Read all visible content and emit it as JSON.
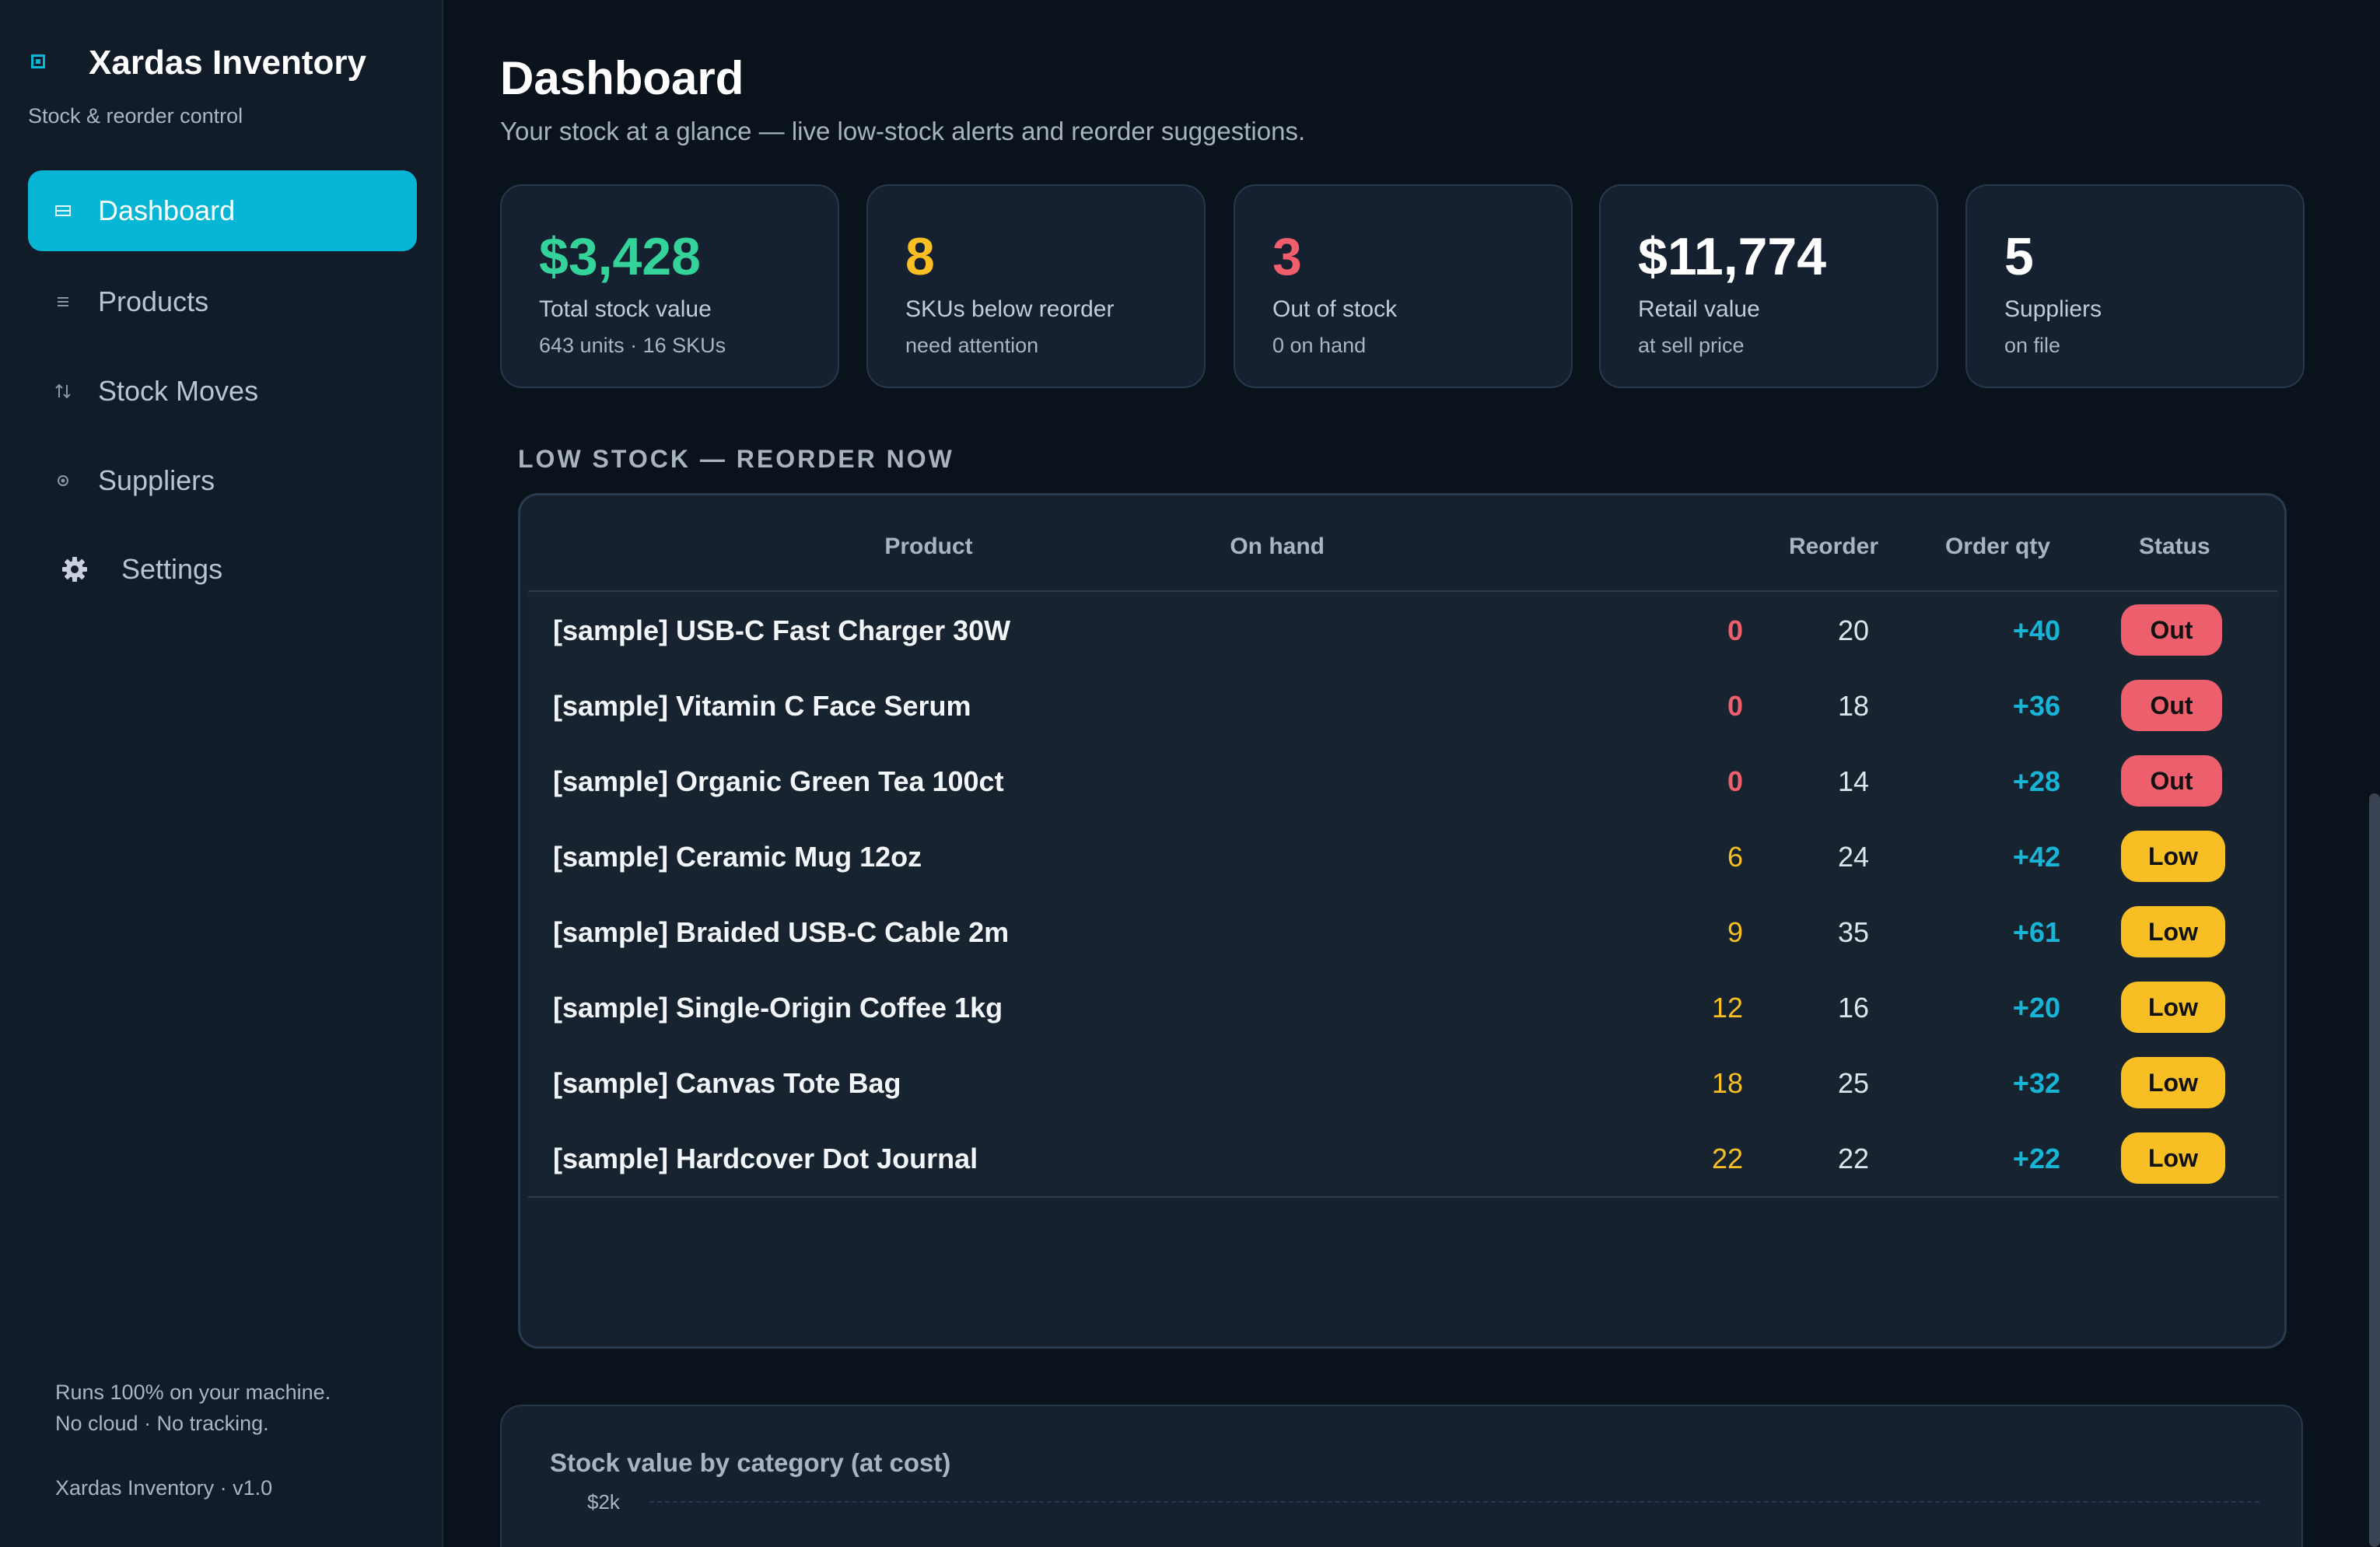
{
  "app": {
    "name": "Xardas Inventory",
    "tagline": "Stock & reorder control"
  },
  "sidebar": {
    "items": [
      {
        "label": "Dashboard",
        "icon": "dashboard-icon"
      },
      {
        "label": "Products",
        "icon": "list-icon"
      },
      {
        "label": "Stock Moves",
        "icon": "arrows-up-down-icon"
      },
      {
        "label": "Suppliers",
        "icon": "circle-icon"
      },
      {
        "label": "Settings",
        "icon": "gear-icon"
      }
    ],
    "footer_line1": "Runs 100% on your machine.",
    "footer_line2": "No cloud · No tracking.",
    "version": "Xardas Inventory · v1.0"
  },
  "header": {
    "title": "Dashboard",
    "subtitle": "Your stock at a glance — live low-stock alerts and reorder suggestions."
  },
  "kpis": [
    {
      "value": "$3,428",
      "label": "Total stock value",
      "sub": "643 units · 16 SKUs",
      "color": "#34d399"
    },
    {
      "value": "8",
      "label": "SKUs below reorder",
      "sub": "need attention",
      "color": "#fbbf24"
    },
    {
      "value": "3",
      "label": "Out of stock",
      "sub": "0 on hand",
      "color": "#f05d6c"
    },
    {
      "value": "$11,774",
      "label": "Retail value",
      "sub": "at sell price",
      "color": "#ffffff"
    },
    {
      "value": "5",
      "label": "Suppliers",
      "sub": "on file",
      "color": "#ffffff"
    }
  ],
  "low_stock": {
    "title": "LOW STOCK — REORDER NOW",
    "columns": [
      "Product",
      "On hand",
      "Reorder",
      "Order qty",
      "Status"
    ],
    "rows": [
      {
        "product": "[sample] USB-C Fast Charger 30W",
        "on_hand": "0",
        "reorder": "20",
        "order_qty": "+40",
        "status": "Out"
      },
      {
        "product": "[sample] Vitamin C Face Serum",
        "on_hand": "0",
        "reorder": "18",
        "order_qty": "+36",
        "status": "Out"
      },
      {
        "product": "[sample] Organic Green Tea 100ct",
        "on_hand": "0",
        "reorder": "14",
        "order_qty": "+28",
        "status": "Out"
      },
      {
        "product": "[sample] Ceramic Mug 12oz",
        "on_hand": "6",
        "reorder": "24",
        "order_qty": "+42",
        "status": "Low"
      },
      {
        "product": "[sample] Braided USB-C Cable 2m",
        "on_hand": "9",
        "reorder": "35",
        "order_qty": "+61",
        "status": "Low"
      },
      {
        "product": "[sample] Single-Origin Coffee 1kg",
        "on_hand": "12",
        "reorder": "16",
        "order_qty": "+20",
        "status": "Low"
      },
      {
        "product": "[sample] Canvas Tote Bag",
        "on_hand": "18",
        "reorder": "25",
        "order_qty": "+32",
        "status": "Low"
      },
      {
        "product": "[sample] Hardcover Dot Journal",
        "on_hand": "22",
        "reorder": "22",
        "order_qty": "+22",
        "status": "Low"
      }
    ]
  },
  "chart": {
    "title": "Stock value by category (at cost)",
    "top_tick": "$2k"
  },
  "colors": {
    "accent": "#07b6d5",
    "out": "#ee5f6e",
    "low": "#f7bf24",
    "order_qty": "#17b4d6"
  }
}
